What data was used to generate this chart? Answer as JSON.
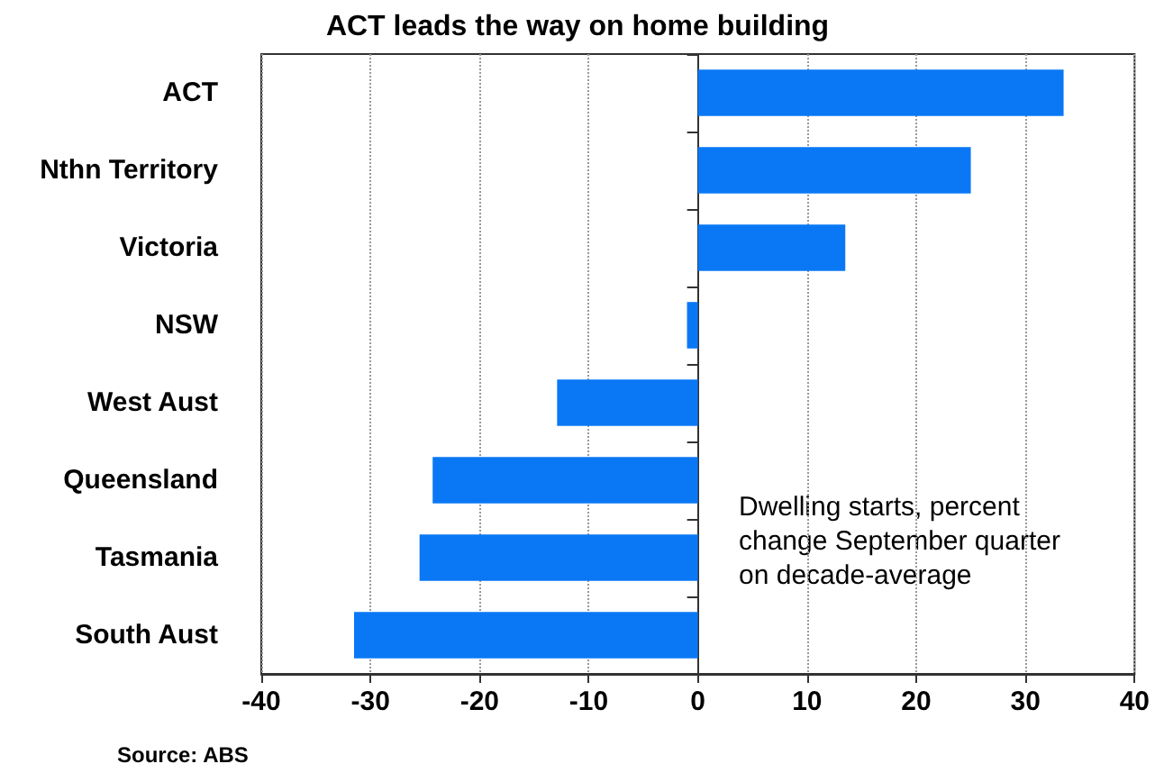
{
  "chart_data": {
    "type": "bar",
    "orientation": "horizontal",
    "title": "ACT leads the way on home building",
    "categories": [
      "ACT",
      "Nthn Territory",
      "Victoria",
      "NSW",
      "West Aust",
      "Queensland",
      "Tasmania",
      "South Aust"
    ],
    "values": [
      33.5,
      25,
      13.5,
      -1,
      -12.9,
      -24.3,
      -25.5,
      -31.5
    ],
    "color": "#0a78f5",
    "xlim": [
      -40,
      40
    ],
    "xticks": [
      -40,
      -30,
      -20,
      -10,
      0,
      10,
      20,
      30,
      40
    ],
    "grid": "x",
    "annotations": [
      "Dwelling starts, percent\nchange September quarter\non decade-average",
      "Source: ABS"
    ]
  }
}
